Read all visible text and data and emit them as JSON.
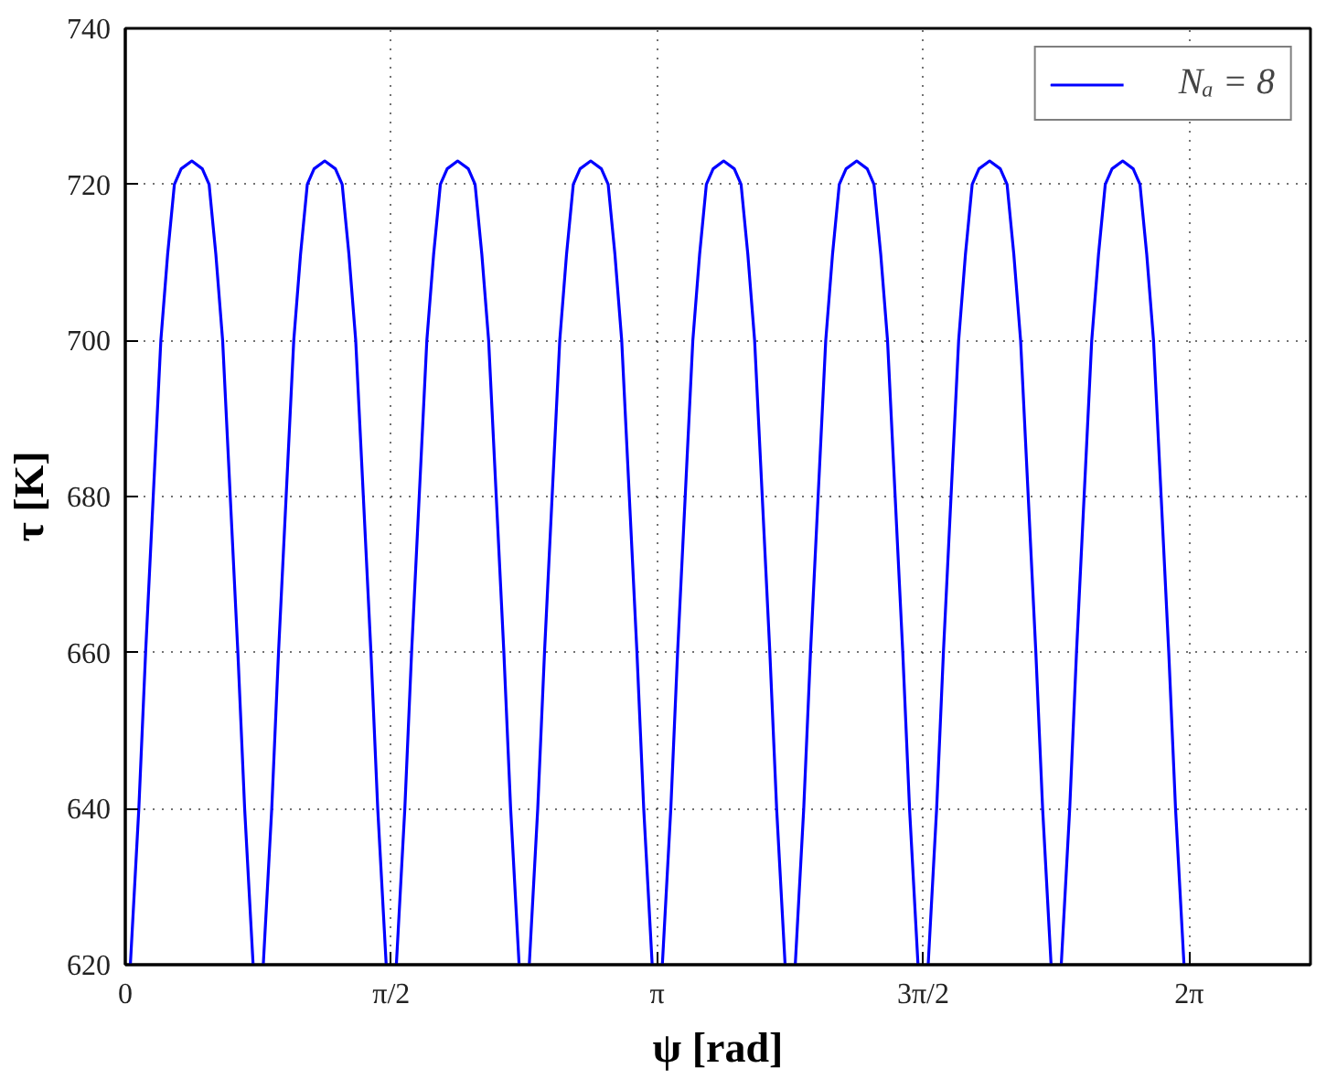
{
  "chart_data": {
    "type": "line",
    "xlabel": "ψ [rad]",
    "ylabel": "τ [K]",
    "x": [
      0.03,
      0.08,
      0.12,
      0.165,
      0.21,
      0.25,
      0.29,
      0.33,
      0.393,
      0.455,
      0.495,
      0.535,
      0.575,
      0.62,
      0.665,
      0.705,
      0.755,
      0.785,
      0.815,
      0.865,
      0.905,
      0.95,
      0.995,
      1.035,
      1.075,
      1.115,
      1.178,
      1.241,
      1.281,
      1.321,
      1.361,
      1.406,
      1.451,
      1.491,
      1.541,
      1.571,
      1.601,
      1.651,
      1.691,
      1.736,
      1.781,
      1.821,
      1.861,
      1.901,
      1.963,
      2.026,
      2.066,
      2.106,
      2.146,
      2.191,
      2.236,
      2.276,
      2.326,
      2.356,
      2.386,
      2.436,
      2.476,
      2.521,
      2.566,
      2.606,
      2.646,
      2.686,
      2.749,
      2.812,
      2.852,
      2.892,
      2.932,
      2.977,
      3.022,
      3.062,
      3.112,
      3.142,
      3.172,
      3.222,
      3.262,
      3.307,
      3.352,
      3.392,
      3.432,
      3.472,
      3.534,
      3.597,
      3.637,
      3.677,
      3.717,
      3.762,
      3.807,
      3.847,
      3.897,
      3.927,
      3.957,
      4.007,
      4.047,
      4.092,
      4.137,
      4.177,
      4.217,
      4.257,
      4.32,
      4.382,
      4.422,
      4.462,
      4.502,
      4.547,
      4.592,
      4.632,
      4.682,
      4.712,
      4.742,
      4.792,
      4.832,
      4.877,
      4.922,
      4.962,
      5.002,
      5.042,
      5.105,
      5.168,
      5.208,
      5.248,
      5.288,
      5.333,
      5.378,
      5.418,
      5.468,
      5.498,
      5.528,
      5.578,
      5.618,
      5.663,
      5.708,
      5.748,
      5.788,
      5.828,
      5.891,
      5.953,
      5.993,
      6.033,
      6.073,
      6.118,
      6.163,
      6.203,
      6.253
    ],
    "series": [
      {
        "name": "Nₐ = 8",
        "color": "#0000ff",
        "values": [
          620,
          640,
          660,
          680,
          700,
          711,
          720,
          722,
          723,
          722,
          720,
          711,
          700,
          680,
          660,
          640,
          620,
          null,
          620,
          640,
          660,
          680,
          700,
          711,
          720,
          722,
          723,
          722,
          720,
          711,
          700,
          680,
          660,
          640,
          620,
          null,
          620,
          640,
          660,
          680,
          700,
          711,
          720,
          722,
          723,
          722,
          720,
          711,
          700,
          680,
          660,
          640,
          620,
          null,
          620,
          640,
          660,
          680,
          700,
          711,
          720,
          722,
          723,
          722,
          720,
          711,
          700,
          680,
          660,
          640,
          620,
          null,
          620,
          640,
          660,
          680,
          700,
          711,
          720,
          722,
          723,
          722,
          720,
          711,
          700,
          680,
          660,
          640,
          620,
          null,
          620,
          640,
          660,
          680,
          700,
          711,
          720,
          722,
          723,
          722,
          720,
          711,
          700,
          680,
          660,
          640,
          620,
          null,
          620,
          640,
          660,
          680,
          700,
          711,
          720,
          722,
          723,
          722,
          720,
          711,
          700,
          680,
          660,
          640,
          620,
          null,
          620,
          640,
          660,
          680,
          700,
          711,
          720,
          722,
          723,
          722,
          720,
          711,
          700,
          680,
          660,
          640,
          620
        ]
      }
    ],
    "xlim": [
      0,
      7
    ],
    "ylim": [
      620,
      740
    ],
    "xticks": [
      0,
      {
        "value": 1.5708,
        "label": "π/2"
      },
      {
        "value": 3.1416,
        "label": "π"
      },
      {
        "value": 4.7124,
        "label": "3π/2"
      },
      {
        "value": 6.2832,
        "label": "2π"
      }
    ],
    "yticks": [
      620,
      640,
      660,
      680,
      700,
      720,
      740
    ],
    "grid": true,
    "legend": "top right"
  }
}
